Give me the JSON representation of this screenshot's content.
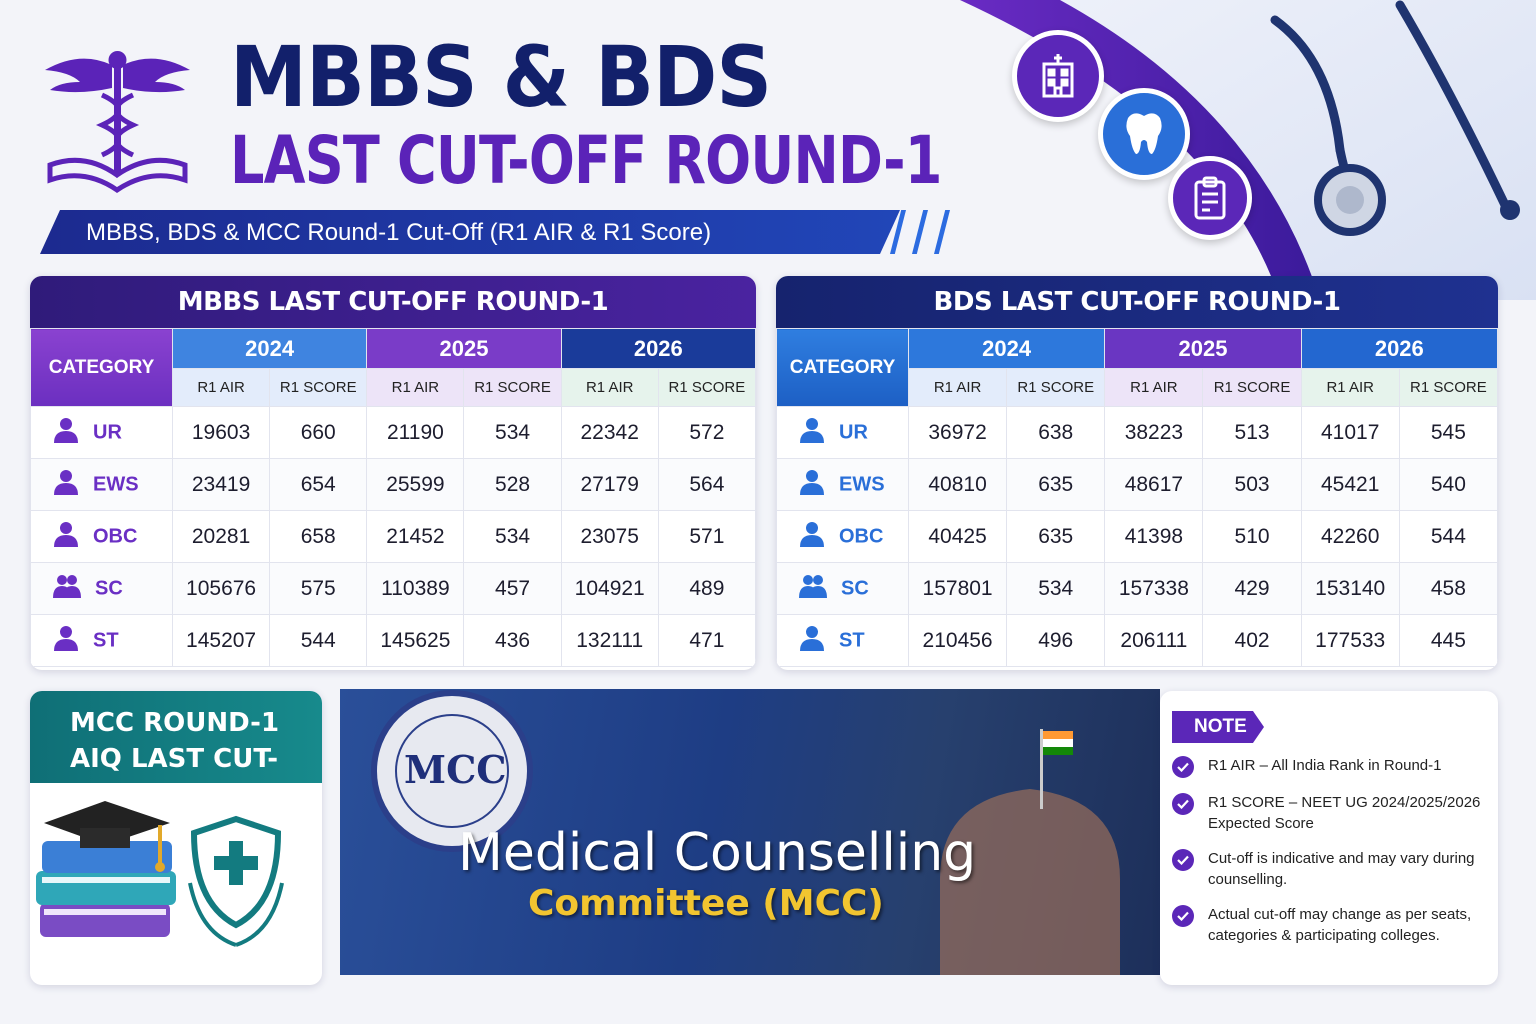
{
  "header": {
    "title_line1": "MBBS & BDS",
    "title_line2": "LAST CUT-OFF ROUND-1",
    "subtitle": "MBBS, BDS & MCC Round-1 Cut-Off (R1 AIR & R1 Score)"
  },
  "mbbs": {
    "title": "MBBS LAST CUT-OFF ROUND-1",
    "category_label": "CATEGORY",
    "years": [
      "2024",
      "2025",
      "2026"
    ],
    "subheads": [
      "R1 AIR",
      "R1 SCORE"
    ],
    "rows": [
      {
        "category": "UR",
        "values": [
          "19603",
          "660",
          "21190",
          "534",
          "22342",
          "572"
        ]
      },
      {
        "category": "EWS",
        "values": [
          "23419",
          "654",
          "25599",
          "528",
          "27179",
          "564"
        ]
      },
      {
        "category": "OBC",
        "values": [
          "20281",
          "658",
          "21452",
          "534",
          "23075",
          "571"
        ]
      },
      {
        "category": "SC",
        "values": [
          "105676",
          "575",
          "110389",
          "457",
          "104921",
          "489"
        ]
      },
      {
        "category": "ST",
        "values": [
          "145207",
          "544",
          "145625",
          "436",
          "132111",
          "471"
        ]
      }
    ]
  },
  "bds": {
    "title": "BDS LAST CUT-OFF ROUND-1",
    "category_label": "CATEGORY",
    "years": [
      "2024",
      "2025",
      "2026"
    ],
    "subheads": [
      "R1 AIR",
      "R1 SCORE"
    ],
    "rows": [
      {
        "category": "UR",
        "values": [
          "36972",
          "638",
          "38223",
          "513",
          "41017",
          "545"
        ]
      },
      {
        "category": "EWS",
        "values": [
          "40810",
          "635",
          "48617",
          "503",
          "45421",
          "540"
        ]
      },
      {
        "category": "OBC",
        "values": [
          "40425",
          "635",
          "41398",
          "510",
          "42260",
          "544"
        ]
      },
      {
        "category": "SC",
        "values": [
          "157801",
          "534",
          "157338",
          "429",
          "153140",
          "458"
        ]
      },
      {
        "category": "ST",
        "values": [
          "210456",
          "496",
          "206111",
          "402",
          "177533",
          "445"
        ]
      }
    ]
  },
  "mcc": {
    "title_line1": "MCC ROUND-1",
    "title_line2": "AIQ LAST CUT-OFF"
  },
  "banner": {
    "logo_text": "MCC",
    "line1": "Medical Counselling",
    "line2": "Committee (MCC)"
  },
  "note": {
    "tag": "NOTE",
    "items": [
      "R1 AIR – All India Rank in Round-1",
      "R1 SCORE – NEET UG 2024/2025/2026 Expected Score",
      "Cut-off is indicative and may vary during counselling.",
      "Actual cut-off may change as per seats, categories & participating colleges."
    ]
  },
  "colors": {
    "navy": "#12206b",
    "purple": "#5b23b8",
    "blue": "#2a6fd8",
    "teal": "#0f6f76"
  }
}
